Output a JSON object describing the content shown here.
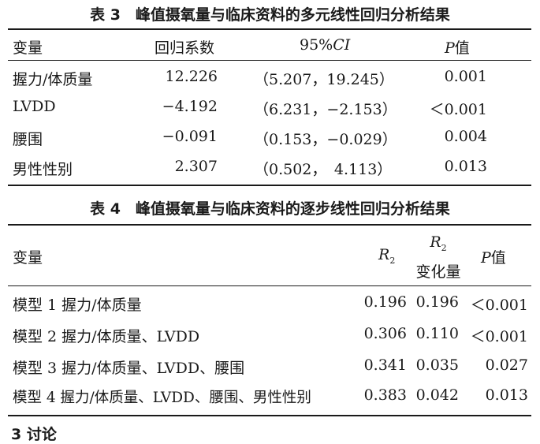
{
  "table3": {
    "title": "表 3　峰值摄氧量与临床资料的多元线性回归分析结果",
    "headers": {
      "var": "变量",
      "coef": "回归系数",
      "ci_num": "95%",
      "ci_it": "CI",
      "p_it": "P",
      "p_txt": "值"
    },
    "rows": [
      {
        "var": "握力/体质量",
        "coef": "12.226",
        "ci": "（5.207，19.245）",
        "p": "0.001"
      },
      {
        "var": "LVDD",
        "coef": "−4.192",
        "ci": "（6.231，−2.153）",
        "p": "＜0.001"
      },
      {
        "var": "腰围",
        "coef": "−0.091",
        "ci": "（0.153，−0.029）",
        "p": "0.004"
      },
      {
        "var": "男性性别",
        "coef": "2.307",
        "ci": "（0.502，　4.113）",
        "p": "0.013"
      }
    ]
  },
  "table4": {
    "title": "表 4　峰值摄氧量与临床资料的逐步线性回归分析结果",
    "headers": {
      "var": "变量",
      "r2_it": "R",
      "r2_sub": "2",
      "r2c_it": "R",
      "r2c_sub": "2",
      "r2c_txt": "变化量",
      "p_it": "P",
      "p_txt": "值"
    },
    "rows": [
      {
        "var": "模型 1 握力/体质量",
        "r2": "0.196",
        "r2c": "0.196",
        "p": "＜0.001"
      },
      {
        "var": "模型 2 握力/体质量、LVDD",
        "r2": "0.306",
        "r2c": "0.110",
        "p": "＜0.001"
      },
      {
        "var": "模型 3 握力/体质量、LVDD、腰围",
        "r2": "0.341",
        "r2c": "0.035",
        "p": "0.027"
      },
      {
        "var": "模型 4 握力/体质量、LVDD、腰围、男性性别",
        "r2": "0.383",
        "r2c": "0.042",
        "p": "0.013"
      }
    ]
  },
  "footer_fragment": "3 讨论"
}
